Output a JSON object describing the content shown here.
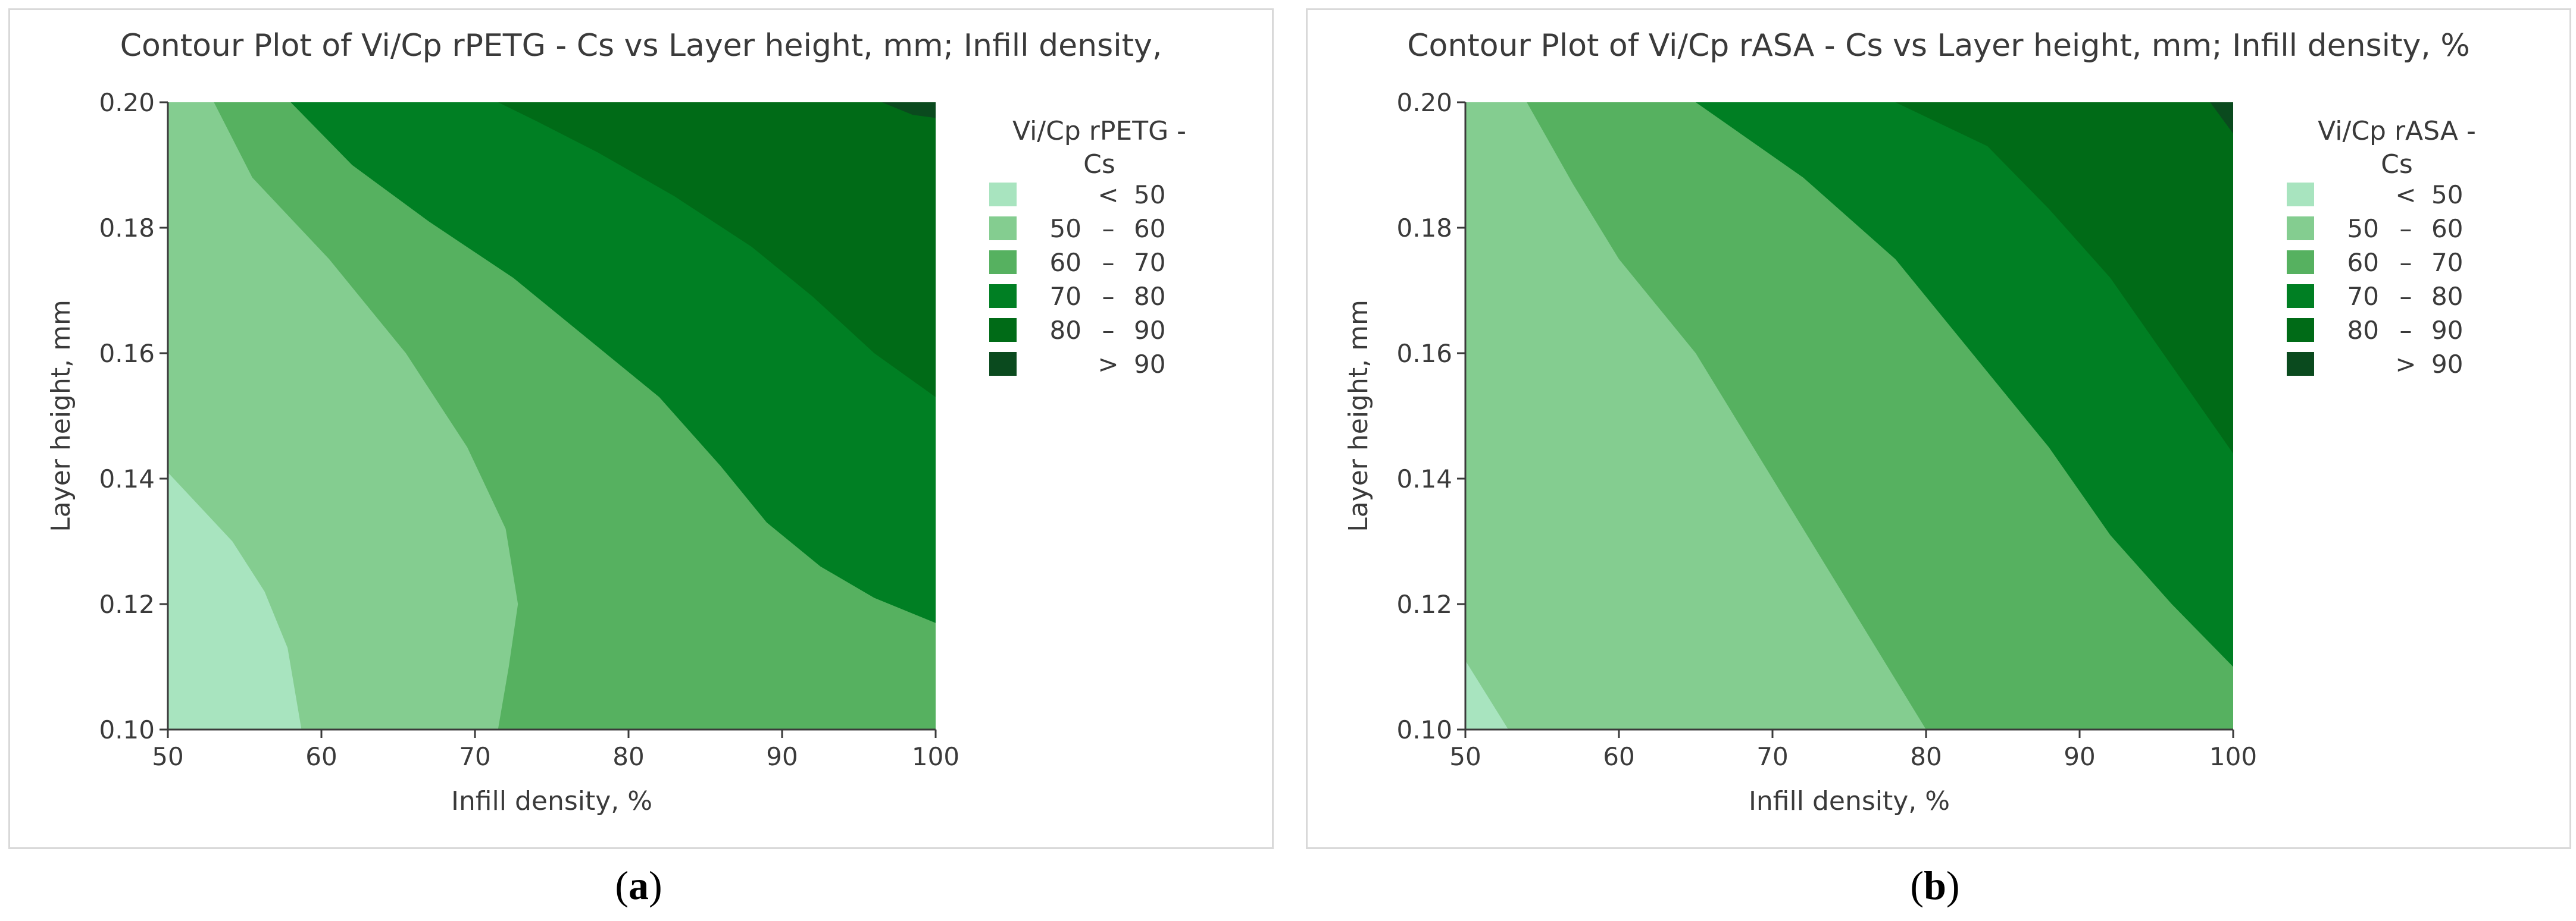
{
  "colors": {
    "lt50": "#a8e4bf",
    "r50_60": "#84cd90",
    "r60_70": "#56b160",
    "r70_80": "#007f23",
    "r80_90": "#006b17",
    "gt90": "#0a4a1e",
    "axis": "#3a3a3a",
    "border": "#d9d9d9"
  },
  "legend_levels": [
    {
      "lo": "",
      "sep": "<",
      "hi": "50",
      "color_key": "lt50"
    },
    {
      "lo": "50",
      "sep": "–",
      "hi": "60",
      "color_key": "r50_60"
    },
    {
      "lo": "60",
      "sep": "–",
      "hi": "70",
      "color_key": "r60_70"
    },
    {
      "lo": "70",
      "sep": "–",
      "hi": "80",
      "color_key": "r70_80"
    },
    {
      "lo": "80",
      "sep": "–",
      "hi": "90",
      "color_key": "r80_90"
    },
    {
      "lo": "",
      "sep": ">",
      "hi": "90",
      "color_key": "gt90"
    }
  ],
  "panel_labels": {
    "a": "a",
    "b": "b"
  },
  "chart_data": [
    {
      "type": "contour",
      "title": "Contour Plot of Vi/Cp rPETG - Cs vs Layer height, mm; Infill density,",
      "xlabel": "Infill density, %",
      "ylabel": "Layer height, mm",
      "legend_title": [
        "Vi/Cp rPETG -",
        "Cs"
      ],
      "xlim": [
        50,
        100
      ],
      "ylim": [
        0.1,
        0.2
      ],
      "xticks": [
        "50",
        "60",
        "70",
        "80",
        "90",
        "100"
      ],
      "yticks": [
        "0.10",
        "0.12",
        "0.14",
        "0.16",
        "0.18",
        "0.20"
      ],
      "regions": [
        {
          "level": "r50_60",
          "points": [
            [
              50,
              0.1
            ],
            [
              100,
              0.1
            ],
            [
              100,
              0.2
            ],
            [
              50,
              0.2
            ]
          ]
        },
        {
          "level": "lt50",
          "points": [
            [
              50,
              0.1
            ],
            [
              58.7,
              0.1
            ],
            [
              57.8,
              0.113
            ],
            [
              56.3,
              0.122
            ],
            [
              54.2,
              0.13
            ],
            [
              50,
              0.141
            ]
          ]
        },
        {
          "level": "r60_70",
          "points": [
            [
              50.3,
              0.2
            ],
            [
              100,
              0.2
            ],
            [
              100,
              0.1
            ],
            [
              71.5,
              0.1
            ],
            [
              72.2,
              0.11
            ],
            [
              72.8,
              0.12
            ],
            [
              72,
              0.132
            ],
            [
              69.5,
              0.145
            ],
            [
              65.5,
              0.16
            ],
            [
              60.5,
              0.175
            ],
            [
              55.5,
              0.188
            ],
            [
              53,
              0.2
            ]
          ]
        },
        {
          "level": "r70_80",
          "points": [
            [
              58,
              0.2
            ],
            [
              100,
              0.2
            ],
            [
              100,
              0.117
            ],
            [
              96,
              0.121
            ],
            [
              92.5,
              0.126
            ],
            [
              89,
              0.133
            ],
            [
              86,
              0.142
            ],
            [
              82,
              0.153
            ],
            [
              77,
              0.163
            ],
            [
              72.5,
              0.172
            ],
            [
              67,
              0.181
            ],
            [
              62,
              0.19
            ]
          ]
        },
        {
          "level": "r80_90",
          "points": [
            [
              71.5,
              0.2
            ],
            [
              100,
              0.2
            ],
            [
              100,
              0.153
            ],
            [
              96,
              0.16
            ],
            [
              92,
              0.169
            ],
            [
              88,
              0.177
            ],
            [
              83,
              0.185
            ],
            [
              78,
              0.192
            ],
            [
              74,
              0.197
            ]
          ]
        },
        {
          "level": "gt90",
          "points": [
            [
              96.5,
              0.2
            ],
            [
              100,
              0.2
            ],
            [
              100,
              0.1975
            ],
            [
              98.5,
              0.198
            ]
          ]
        }
      ]
    },
    {
      "type": "contour",
      "title": "Contour Plot of Vi/Cp rASA - Cs vs Layer height, mm; Infill density, %",
      "xlabel": "Infill density, %",
      "ylabel": "Layer height, mm",
      "legend_title": [
        "Vi/Cp rASA -",
        "Cs"
      ],
      "xlim": [
        50,
        100
      ],
      "ylim": [
        0.1,
        0.2
      ],
      "xticks": [
        "50",
        "60",
        "70",
        "80",
        "90",
        "100"
      ],
      "yticks": [
        "0.10",
        "0.12",
        "0.14",
        "0.16",
        "0.18",
        "0.20"
      ],
      "regions": [
        {
          "level": "r50_60",
          "points": [
            [
              50,
              0.1
            ],
            [
              100,
              0.1
            ],
            [
              100,
              0.2
            ],
            [
              50,
              0.2
            ]
          ]
        },
        {
          "level": "lt50",
          "points": [
            [
              50,
              0.1
            ],
            [
              52.8,
              0.1
            ],
            [
              50,
              0.111
            ]
          ]
        },
        {
          "level": "r60_70",
          "points": [
            [
              54,
              0.2
            ],
            [
              100,
              0.2
            ],
            [
              100,
              0.1
            ],
            [
              80,
              0.1
            ],
            [
              75,
              0.12
            ],
            [
              70,
              0.14
            ],
            [
              65,
              0.16
            ],
            [
              60,
              0.175
            ],
            [
              57,
              0.187
            ]
          ]
        },
        {
          "level": "r70_80",
          "points": [
            [
              65,
              0.2
            ],
            [
              100,
              0.2
            ],
            [
              100,
              0.11
            ],
            [
              96,
              0.12
            ],
            [
              92,
              0.131
            ],
            [
              88,
              0.145
            ],
            [
              83,
              0.16
            ],
            [
              78,
              0.175
            ],
            [
              72,
              0.188
            ]
          ]
        },
        {
          "level": "r80_90",
          "points": [
            [
              78,
              0.2
            ],
            [
              100,
              0.2
            ],
            [
              100,
              0.144
            ],
            [
              96,
              0.158
            ],
            [
              92,
              0.172
            ],
            [
              88,
              0.183
            ],
            [
              84,
              0.193
            ]
          ]
        },
        {
          "level": "gt90",
          "points": [
            [
              98.5,
              0.2
            ],
            [
              100,
              0.2
            ],
            [
              100,
              0.195
            ]
          ]
        }
      ]
    }
  ]
}
